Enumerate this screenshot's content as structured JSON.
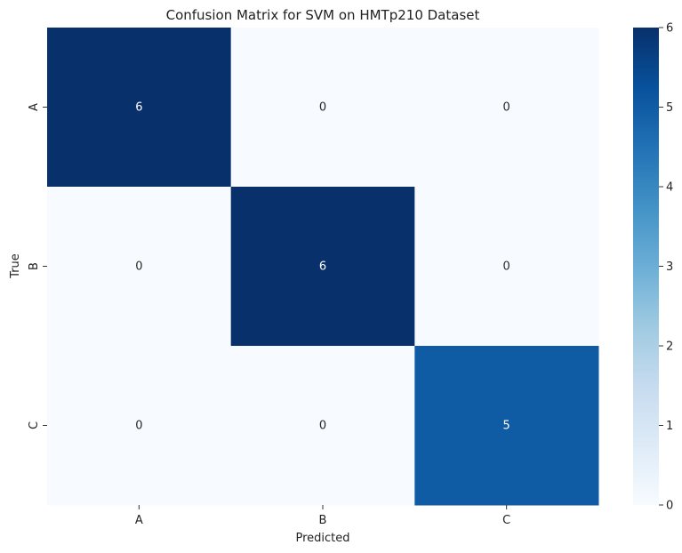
{
  "chart_data": {
    "type": "heatmap",
    "title": "Confusion Matrix for SVM on HMTp210 Dataset",
    "xlabel": "Predicted",
    "ylabel": "True",
    "x_categories": [
      "A",
      "B",
      "C"
    ],
    "y_categories": [
      "A",
      "B",
      "C"
    ],
    "values": [
      [
        6,
        0,
        0
      ],
      [
        0,
        6,
        0
      ],
      [
        0,
        0,
        5
      ]
    ],
    "colorbar": {
      "range": [
        0,
        6
      ],
      "ticks": [
        "0",
        "1",
        "2",
        "3",
        "4",
        "5",
        "6"
      ]
    },
    "colormap": [
      "#f7fbff",
      "#deebf7",
      "#c6dbef",
      "#9ecae1",
      "#6baed6",
      "#4292c6",
      "#2171b5",
      "#08519c",
      "#08306b"
    ],
    "grid": false,
    "legend": "colorbar-right"
  }
}
